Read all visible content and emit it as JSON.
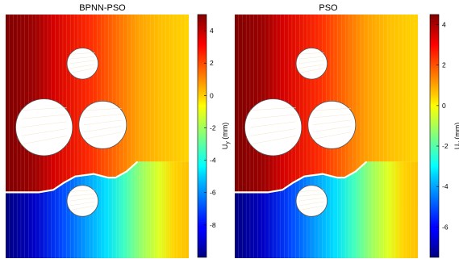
{
  "chart_data": [
    {
      "type": "contour",
      "title": "BPNN-PSO",
      "colorbar": {
        "label": "U",
        "label_subscript": "y",
        "label_unit": " (mm)",
        "range": [
          -10,
          5
        ],
        "ticks": [
          4,
          2,
          0,
          -2,
          -4,
          -6,
          -8
        ],
        "colormap": "jet"
      },
      "holes": [
        {
          "cx": 0.42,
          "cy": 0.2
        },
        {
          "cx": 0.21,
          "cy": 0.46
        },
        {
          "cx": 0.53,
          "cy": 0.45
        },
        {
          "cx": 0.42,
          "cy": 0.76
        }
      ]
    },
    {
      "type": "contour",
      "title": "PSO",
      "colorbar": {
        "label": "U",
        "label_subscript": "y",
        "label_unit": " (mm)",
        "range": [
          -7.5,
          4.5
        ],
        "ticks": [
          4,
          2,
          0,
          -2,
          -4,
          -6
        ],
        "colormap": "jet"
      },
      "holes": [
        {
          "cx": 0.42,
          "cy": 0.2
        },
        {
          "cx": 0.21,
          "cy": 0.46
        },
        {
          "cx": 0.53,
          "cy": 0.45
        },
        {
          "cx": 0.42,
          "cy": 0.76
        }
      ]
    }
  ]
}
